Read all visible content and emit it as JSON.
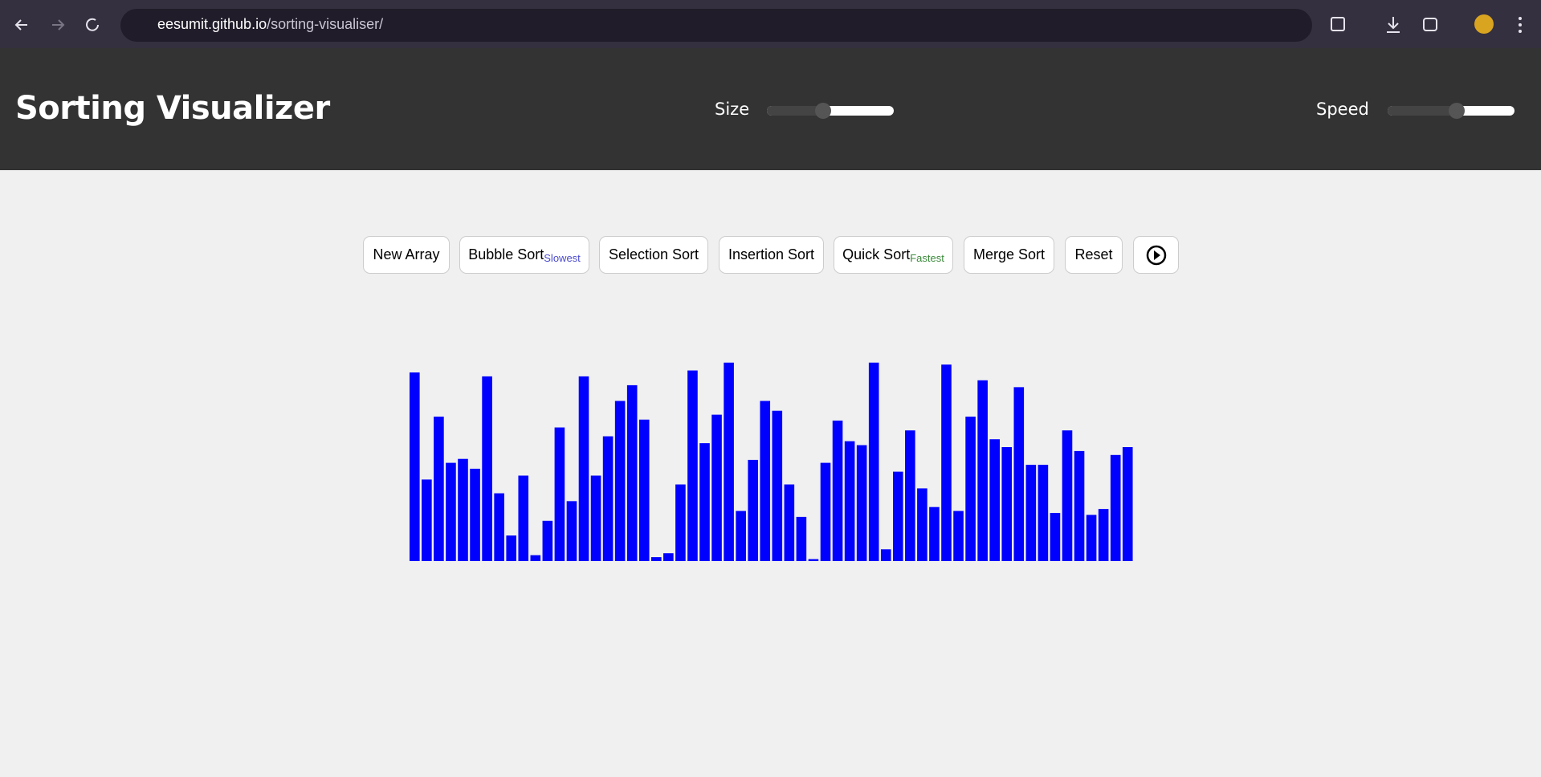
{
  "browser": {
    "url": {
      "host": "eesumit.github.io",
      "path": "/sorting-visualiser/"
    }
  },
  "header": {
    "title": "Sorting Visualizer",
    "size_label": "Size",
    "speed_label": "Speed"
  },
  "buttons": [
    {
      "label": "New Array"
    },
    {
      "label": "Bubble Sort",
      "note": "Slowest"
    },
    {
      "label": "Selection Sort"
    },
    {
      "label": "Insertion Sort"
    },
    {
      "label": "Quick Sort",
      "note": "Fastest"
    },
    {
      "label": "Merge Sort"
    },
    {
      "label": "Reset"
    }
  ],
  "array": {
    "color": "#0000ff",
    "values": [
      192,
      83,
      147,
      100,
      104,
      94,
      188,
      69,
      26,
      87,
      6,
      41,
      136,
      61,
      188,
      87,
      127,
      163,
      179,
      144,
      4,
      8,
      78,
      194,
      120,
      149,
      202,
      51,
      103,
      163,
      153,
      78,
      45,
      2,
      100,
      143,
      122,
      118,
      202,
      12,
      91,
      133,
      74,
      55,
      200,
      51,
      147,
      184,
      124,
      116,
      177,
      98,
      98,
      49,
      133,
      112,
      47,
      53,
      108,
      116
    ]
  }
}
